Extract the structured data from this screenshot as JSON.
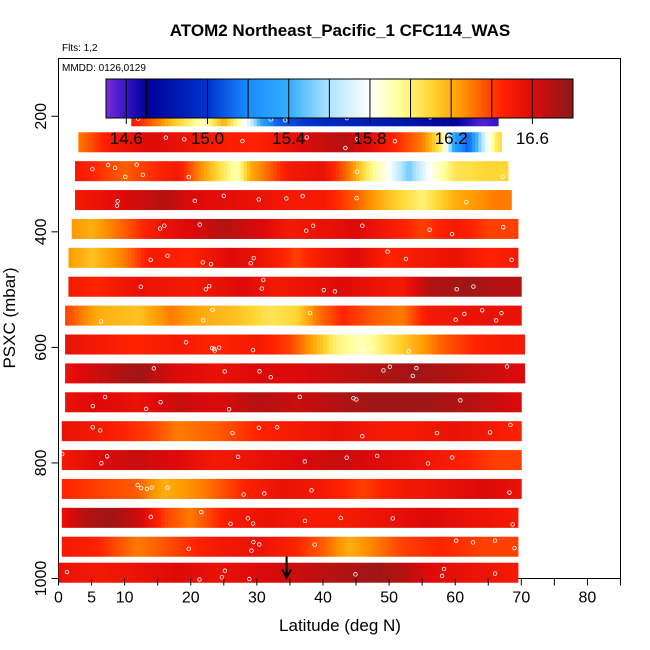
{
  "chart_data": {
    "type": "heatmap",
    "title": "ATOM2 Northeast_Pacific_1 CFC114_WAS",
    "flights_label": "Flts: 1,2",
    "dates_label": "MMDD: 0126,0129",
    "xlabel": "Latitude (deg N)",
    "ylabel": "PSXC (mbar)",
    "xlim": [
      0,
      85
    ],
    "x_ticks": [
      0,
      5,
      10,
      20,
      30,
      40,
      50,
      60,
      70,
      80
    ],
    "ylim": [
      1000,
      100
    ],
    "y_ticks": [
      200,
      400,
      600,
      800,
      1000
    ],
    "colorbar": {
      "range": [
        14.5,
        16.8
      ],
      "tick_values": [
        14.6,
        15.0,
        15.4,
        15.8,
        16.2,
        16.6
      ],
      "tick_labels": [
        "14.6",
        "15.0",
        "15.4",
        "15.8",
        "16.2",
        "16.6"
      ],
      "box_edges": [
        14.5,
        14.6,
        14.7,
        15.0,
        15.2,
        15.4,
        15.6,
        15.8,
        16.0,
        16.2,
        16.4,
        16.6,
        16.8
      ],
      "stops": [
        {
          "v": 14.5,
          "color": "#7a2bd6"
        },
        {
          "v": 14.6,
          "color": "#3314c8"
        },
        {
          "v": 14.7,
          "color": "#000099"
        },
        {
          "v": 15.0,
          "color": "#0033cc"
        },
        {
          "v": 15.2,
          "color": "#1a8cff"
        },
        {
          "v": 15.4,
          "color": "#33adff"
        },
        {
          "v": 15.6,
          "color": "#aee4ff"
        },
        {
          "v": 15.8,
          "color": "#ffffff"
        },
        {
          "v": 15.95,
          "color": "#ffff99"
        },
        {
          "v": 16.1,
          "color": "#ffd633"
        },
        {
          "v": 16.25,
          "color": "#ff9900"
        },
        {
          "v": 16.45,
          "color": "#ff2200"
        },
        {
          "v": 16.6,
          "color": "#dd0a0a"
        },
        {
          "v": 16.8,
          "color": "#8b1a1a"
        }
      ]
    },
    "marker": {
      "x": 34.5,
      "direction": "down"
    },
    "bands": [
      {
        "p": 200,
        "x0": 11,
        "x1": 66.5,
        "segments": [
          [
            11,
            16.5
          ],
          [
            15,
            16.3
          ],
          [
            18,
            16.1
          ],
          [
            22,
            15.9
          ],
          [
            25,
            16.2
          ],
          [
            29,
            15.7
          ],
          [
            31,
            15.3
          ],
          [
            33,
            15.1
          ],
          [
            40,
            14.95
          ],
          [
            50,
            14.85
          ],
          [
            60,
            14.7
          ],
          [
            64,
            14.55
          ],
          [
            66.5,
            14.6
          ]
        ]
      },
      {
        "p": 245,
        "x0": 3,
        "x1": 67,
        "segments": [
          [
            3,
            16.3
          ],
          [
            8,
            16.5
          ],
          [
            14,
            16.6
          ],
          [
            22,
            16.5
          ],
          [
            30,
            16.45
          ],
          [
            37,
            16.6
          ],
          [
            43,
            16.7
          ],
          [
            48,
            16.55
          ],
          [
            55,
            16.3
          ],
          [
            58,
            16.0
          ],
          [
            60,
            15.3
          ],
          [
            62,
            15.1
          ],
          [
            64,
            15.6
          ],
          [
            66,
            16.0
          ],
          [
            67,
            16.1
          ]
        ]
      },
      {
        "p": 295,
        "x0": 2.5,
        "x1": 68,
        "segments": [
          [
            2.5,
            16.5
          ],
          [
            10,
            16.35
          ],
          [
            18,
            16.5
          ],
          [
            24,
            16.1
          ],
          [
            27,
            15.9
          ],
          [
            29,
            16.2
          ],
          [
            35,
            16.5
          ],
          [
            40,
            16.55
          ],
          [
            44,
            16.3
          ],
          [
            47,
            16.0
          ],
          [
            50,
            15.8
          ],
          [
            53,
            15.5
          ],
          [
            56,
            15.8
          ],
          [
            60,
            16.05
          ],
          [
            65,
            16.1
          ],
          [
            68,
            16.1
          ]
        ]
      },
      {
        "p": 345,
        "x0": 2.5,
        "x1": 68.5,
        "segments": [
          [
            2.5,
            16.5
          ],
          [
            10,
            16.6
          ],
          [
            16,
            16.7
          ],
          [
            20,
            16.6
          ],
          [
            30,
            16.55
          ],
          [
            35,
            16.5
          ],
          [
            40,
            16.5
          ],
          [
            45,
            16.35
          ],
          [
            50,
            16.15
          ],
          [
            55,
            16.0
          ],
          [
            60,
            16.2
          ],
          [
            66,
            16.3
          ],
          [
            68.5,
            16.3
          ]
        ]
      },
      {
        "p": 395,
        "x0": 2,
        "x1": 69.5,
        "segments": [
          [
            2,
            16.25
          ],
          [
            5,
            16.2
          ],
          [
            10,
            16.35
          ],
          [
            16,
            16.55
          ],
          [
            20,
            16.6
          ],
          [
            25,
            16.7
          ],
          [
            31,
            16.6
          ],
          [
            35,
            16.5
          ],
          [
            40,
            16.55
          ],
          [
            45,
            16.6
          ],
          [
            50,
            16.5
          ],
          [
            55,
            16.4
          ],
          [
            60,
            16.5
          ],
          [
            65,
            16.4
          ],
          [
            69.5,
            16.4
          ]
        ]
      },
      {
        "p": 445,
        "x0": 1.5,
        "x1": 69.5,
        "segments": [
          [
            1.5,
            16.25
          ],
          [
            5,
            16.15
          ],
          [
            10,
            16.3
          ],
          [
            14,
            16.5
          ],
          [
            20,
            16.45
          ],
          [
            26,
            16.6
          ],
          [
            30,
            16.55
          ],
          [
            36,
            16.4
          ],
          [
            40,
            16.5
          ],
          [
            45,
            16.6
          ],
          [
            50,
            16.45
          ],
          [
            55,
            16.5
          ],
          [
            60,
            16.55
          ],
          [
            65,
            16.45
          ],
          [
            69.5,
            16.5
          ]
        ]
      },
      {
        "p": 495,
        "x0": 1.5,
        "x1": 70,
        "segments": [
          [
            1.5,
            16.5
          ],
          [
            6,
            16.45
          ],
          [
            12,
            16.55
          ],
          [
            20,
            16.5
          ],
          [
            28,
            16.6
          ],
          [
            33,
            16.5
          ],
          [
            38,
            16.55
          ],
          [
            43,
            16.6
          ],
          [
            47,
            16.55
          ],
          [
            52,
            16.5
          ],
          [
            56,
            16.7
          ],
          [
            62,
            16.75
          ],
          [
            66,
            16.7
          ],
          [
            70,
            16.7
          ]
        ]
      },
      {
        "p": 545,
        "x0": 1,
        "x1": 70,
        "segments": [
          [
            1,
            16.4
          ],
          [
            6,
            16.2
          ],
          [
            12,
            16.15
          ],
          [
            17,
            16.3
          ],
          [
            22,
            16.2
          ],
          [
            27,
            16.15
          ],
          [
            32,
            16.05
          ],
          [
            36,
            16.1
          ],
          [
            39,
            16.3
          ],
          [
            43,
            16.45
          ],
          [
            48,
            16.35
          ],
          [
            52,
            16.3
          ],
          [
            56,
            16.5
          ],
          [
            62,
            16.55
          ],
          [
            70,
            16.55
          ]
        ]
      },
      {
        "p": 595,
        "x0": 1,
        "x1": 70.5,
        "segments": [
          [
            1,
            16.55
          ],
          [
            6,
            16.5
          ],
          [
            12,
            16.45
          ],
          [
            18,
            16.5
          ],
          [
            24,
            16.45
          ],
          [
            30,
            16.5
          ],
          [
            35,
            16.4
          ],
          [
            38,
            16.25
          ],
          [
            42,
            16.0
          ],
          [
            46,
            15.9
          ],
          [
            50,
            16.05
          ],
          [
            54,
            16.2
          ],
          [
            58,
            16.35
          ],
          [
            63,
            16.45
          ],
          [
            68,
            16.5
          ],
          [
            70.5,
            16.5
          ]
        ]
      },
      {
        "p": 645,
        "x0": 1,
        "x1": 70.5,
        "segments": [
          [
            1,
            16.55
          ],
          [
            6,
            16.65
          ],
          [
            12,
            16.75
          ],
          [
            18,
            16.6
          ],
          [
            24,
            16.55
          ],
          [
            30,
            16.6
          ],
          [
            36,
            16.6
          ],
          [
            42,
            16.65
          ],
          [
            48,
            16.7
          ],
          [
            54,
            16.75
          ],
          [
            60,
            16.7
          ],
          [
            65,
            16.65
          ],
          [
            70.5,
            16.6
          ]
        ]
      },
      {
        "p": 695,
        "x0": 1,
        "x1": 70,
        "segments": [
          [
            1,
            16.55
          ],
          [
            6,
            16.6
          ],
          [
            12,
            16.55
          ],
          [
            18,
            16.65
          ],
          [
            24,
            16.6
          ],
          [
            30,
            16.7
          ],
          [
            36,
            16.65
          ],
          [
            42,
            16.7
          ],
          [
            48,
            16.75
          ],
          [
            55,
            16.75
          ],
          [
            62,
            16.7
          ],
          [
            66,
            16.65
          ],
          [
            70,
            16.6
          ]
        ]
      },
      {
        "p": 745,
        "x0": 0.5,
        "x1": 70,
        "segments": [
          [
            0.5,
            16.55
          ],
          [
            6,
            16.5
          ],
          [
            10,
            16.45
          ],
          [
            14,
            16.4
          ],
          [
            18,
            16.3
          ],
          [
            24,
            16.35
          ],
          [
            30,
            16.45
          ],
          [
            36,
            16.5
          ],
          [
            42,
            16.55
          ],
          [
            48,
            16.5
          ],
          [
            54,
            16.5
          ],
          [
            60,
            16.55
          ],
          [
            66,
            16.5
          ],
          [
            70,
            16.45
          ]
        ]
      },
      {
        "p": 795,
        "x0": 0.5,
        "x1": 70,
        "segments": [
          [
            0.5,
            16.5
          ],
          [
            6,
            16.6
          ],
          [
            12,
            16.65
          ],
          [
            18,
            16.6
          ],
          [
            24,
            16.5
          ],
          [
            30,
            16.55
          ],
          [
            36,
            16.6
          ],
          [
            42,
            16.65
          ],
          [
            48,
            16.6
          ],
          [
            54,
            16.55
          ],
          [
            58,
            16.5
          ],
          [
            62,
            16.45
          ],
          [
            66,
            16.4
          ],
          [
            70,
            16.4
          ]
        ]
      },
      {
        "p": 845,
        "x0": 0.5,
        "x1": 70,
        "segments": [
          [
            0.5,
            16.45
          ],
          [
            6,
            16.4
          ],
          [
            12,
            16.35
          ],
          [
            16,
            16.2
          ],
          [
            22,
            16.3
          ],
          [
            28,
            16.45
          ],
          [
            34,
            16.55
          ],
          [
            40,
            16.5
          ],
          [
            46,
            16.4
          ],
          [
            52,
            16.5
          ],
          [
            58,
            16.55
          ],
          [
            64,
            16.6
          ],
          [
            70,
            16.55
          ]
        ]
      },
      {
        "p": 895,
        "x0": 0.5,
        "x1": 69.5,
        "segments": [
          [
            0.5,
            16.55
          ],
          [
            4,
            16.7
          ],
          [
            8,
            16.75
          ],
          [
            12,
            16.65
          ],
          [
            16,
            16.4
          ],
          [
            20,
            16.3
          ],
          [
            26,
            16.5
          ],
          [
            32,
            16.55
          ],
          [
            38,
            16.5
          ],
          [
            44,
            16.5
          ],
          [
            50,
            16.55
          ],
          [
            56,
            16.6
          ],
          [
            62,
            16.55
          ],
          [
            69.5,
            16.5
          ]
        ]
      },
      {
        "p": 945,
        "x0": 0.5,
        "x1": 69.5,
        "segments": [
          [
            0.5,
            16.5
          ],
          [
            6,
            16.45
          ],
          [
            12,
            16.3
          ],
          [
            18,
            16.4
          ],
          [
            24,
            16.5
          ],
          [
            30,
            16.55
          ],
          [
            36,
            16.45
          ],
          [
            40,
            16.35
          ],
          [
            44,
            16.2
          ],
          [
            48,
            16.3
          ],
          [
            52,
            16.4
          ],
          [
            58,
            16.45
          ],
          [
            64,
            16.4
          ],
          [
            69.5,
            16.4
          ]
        ]
      },
      {
        "p": 990,
        "x0": 0,
        "x1": 69.5,
        "segments": [
          [
            0,
            16.55
          ],
          [
            6,
            16.5
          ],
          [
            12,
            16.55
          ],
          [
            18,
            16.6
          ],
          [
            24,
            16.55
          ],
          [
            30,
            16.6
          ],
          [
            36,
            16.65
          ],
          [
            42,
            16.7
          ],
          [
            48,
            16.75
          ],
          [
            52,
            16.7
          ],
          [
            56,
            16.6
          ],
          [
            62,
            16.55
          ],
          [
            69.5,
            16.5
          ]
        ]
      }
    ]
  }
}
